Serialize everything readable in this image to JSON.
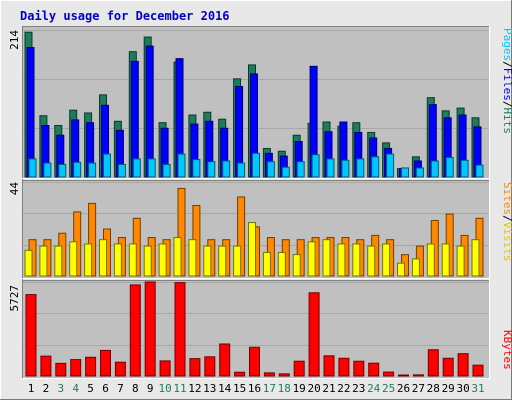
{
  "chart_data": [
    {
      "type": "bar",
      "title": "Daily usage for December 2016",
      "categories": [
        "1",
        "2",
        "3",
        "4",
        "5",
        "6",
        "7",
        "8",
        "9",
        "10",
        "11",
        "12",
        "13",
        "14",
        "15",
        "16",
        "17",
        "18",
        "19",
        "20",
        "21",
        "22",
        "23",
        "24",
        "25",
        "26",
        "27",
        "28",
        "29",
        "30",
        "31"
      ],
      "weekend_days": [
        "3",
        "4",
        "10",
        "11",
        "17",
        "18",
        "24",
        "25",
        "31"
      ],
      "ymax_label": "214",
      "ylim": [
        0,
        214
      ],
      "right_labels": [
        "Pages",
        "Files",
        "Hits"
      ],
      "series": [
        {
          "name": "Hits",
          "color": "#1b7d5c",
          "values": [
            208,
            88,
            74,
            96,
            92,
            118,
            80,
            180,
            201,
            78,
            165,
            89,
            93,
            83,
            141,
            161,
            41,
            37,
            60,
            77,
            79,
            73,
            78,
            64,
            49,
            12,
            29,
            114,
            95,
            99,
            85
          ]
        },
        {
          "name": "Files",
          "color": "#0000ff",
          "values": [
            186,
            74,
            60,
            82,
            78,
            103,
            67,
            166,
            188,
            70,
            170,
            76,
            80,
            70,
            130,
            148,
            34,
            30,
            51,
            159,
            65,
            79,
            64,
            56,
            41,
            12,
            23,
            104,
            85,
            89,
            72
          ]
        },
        {
          "name": "Pages",
          "color": "#00c8ff",
          "values": [
            26,
            20,
            18,
            21,
            20,
            33,
            18,
            26,
            26,
            18,
            33,
            25,
            22,
            23,
            20,
            34,
            22,
            14,
            22,
            32,
            26,
            24,
            26,
            29,
            33,
            13,
            13,
            23,
            28,
            24,
            17
          ]
        }
      ]
    },
    {
      "type": "bar",
      "categories": [
        "1",
        "2",
        "3",
        "4",
        "5",
        "6",
        "7",
        "8",
        "9",
        "10",
        "11",
        "12",
        "13",
        "14",
        "15",
        "16",
        "17",
        "18",
        "19",
        "20",
        "21",
        "22",
        "23",
        "24",
        "25",
        "26",
        "27",
        "28",
        "29",
        "30",
        "31"
      ],
      "ymax_label": "44",
      "ylim": [
        0,
        44
      ],
      "right_labels": [
        "Sites",
        "Visits"
      ],
      "series": [
        {
          "name": "Sites",
          "color": "#ff8800",
          "values": [
            17,
            17,
            20,
            30,
            34,
            22,
            18,
            27,
            18,
            17,
            41,
            33,
            17,
            17,
            37,
            23,
            18,
            17,
            17,
            18,
            18,
            18,
            17,
            19,
            17,
            10,
            14,
            26,
            29,
            19,
            27
          ]
        },
        {
          "name": "Visits",
          "color": "#ffff00",
          "values": [
            12,
            14,
            14,
            16,
            15,
            17,
            15,
            15,
            14,
            15,
            18,
            17,
            14,
            14,
            14,
            25,
            11,
            11,
            10,
            16,
            17,
            15,
            15,
            14,
            15,
            6,
            8,
            15,
            15,
            14,
            17
          ]
        }
      ]
    },
    {
      "type": "bar",
      "categories": [
        "1",
        "2",
        "3",
        "4",
        "5",
        "6",
        "7",
        "8",
        "9",
        "10",
        "11",
        "12",
        "13",
        "14",
        "15",
        "16",
        "17",
        "18",
        "19",
        "20",
        "21",
        "22",
        "23",
        "24",
        "25",
        "26",
        "27",
        "28",
        "29",
        "30",
        "31"
      ],
      "ymax_label": "5727",
      "ylim": [
        0,
        5727
      ],
      "right_labels": [
        "KBytes"
      ],
      "series": [
        {
          "name": "KBytes",
          "color": "#ff0000",
          "values": [
            4960,
            1210,
            770,
            1000,
            1140,
            1560,
            840,
            5550,
            5727,
            920,
            5690,
            1060,
            1170,
            1950,
            230,
            1750,
            190,
            130,
            900,
            5070,
            1230,
            1080,
            900,
            780,
            240,
            40,
            70,
            1600,
            1080,
            1360,
            660
          ]
        }
      ]
    }
  ]
}
